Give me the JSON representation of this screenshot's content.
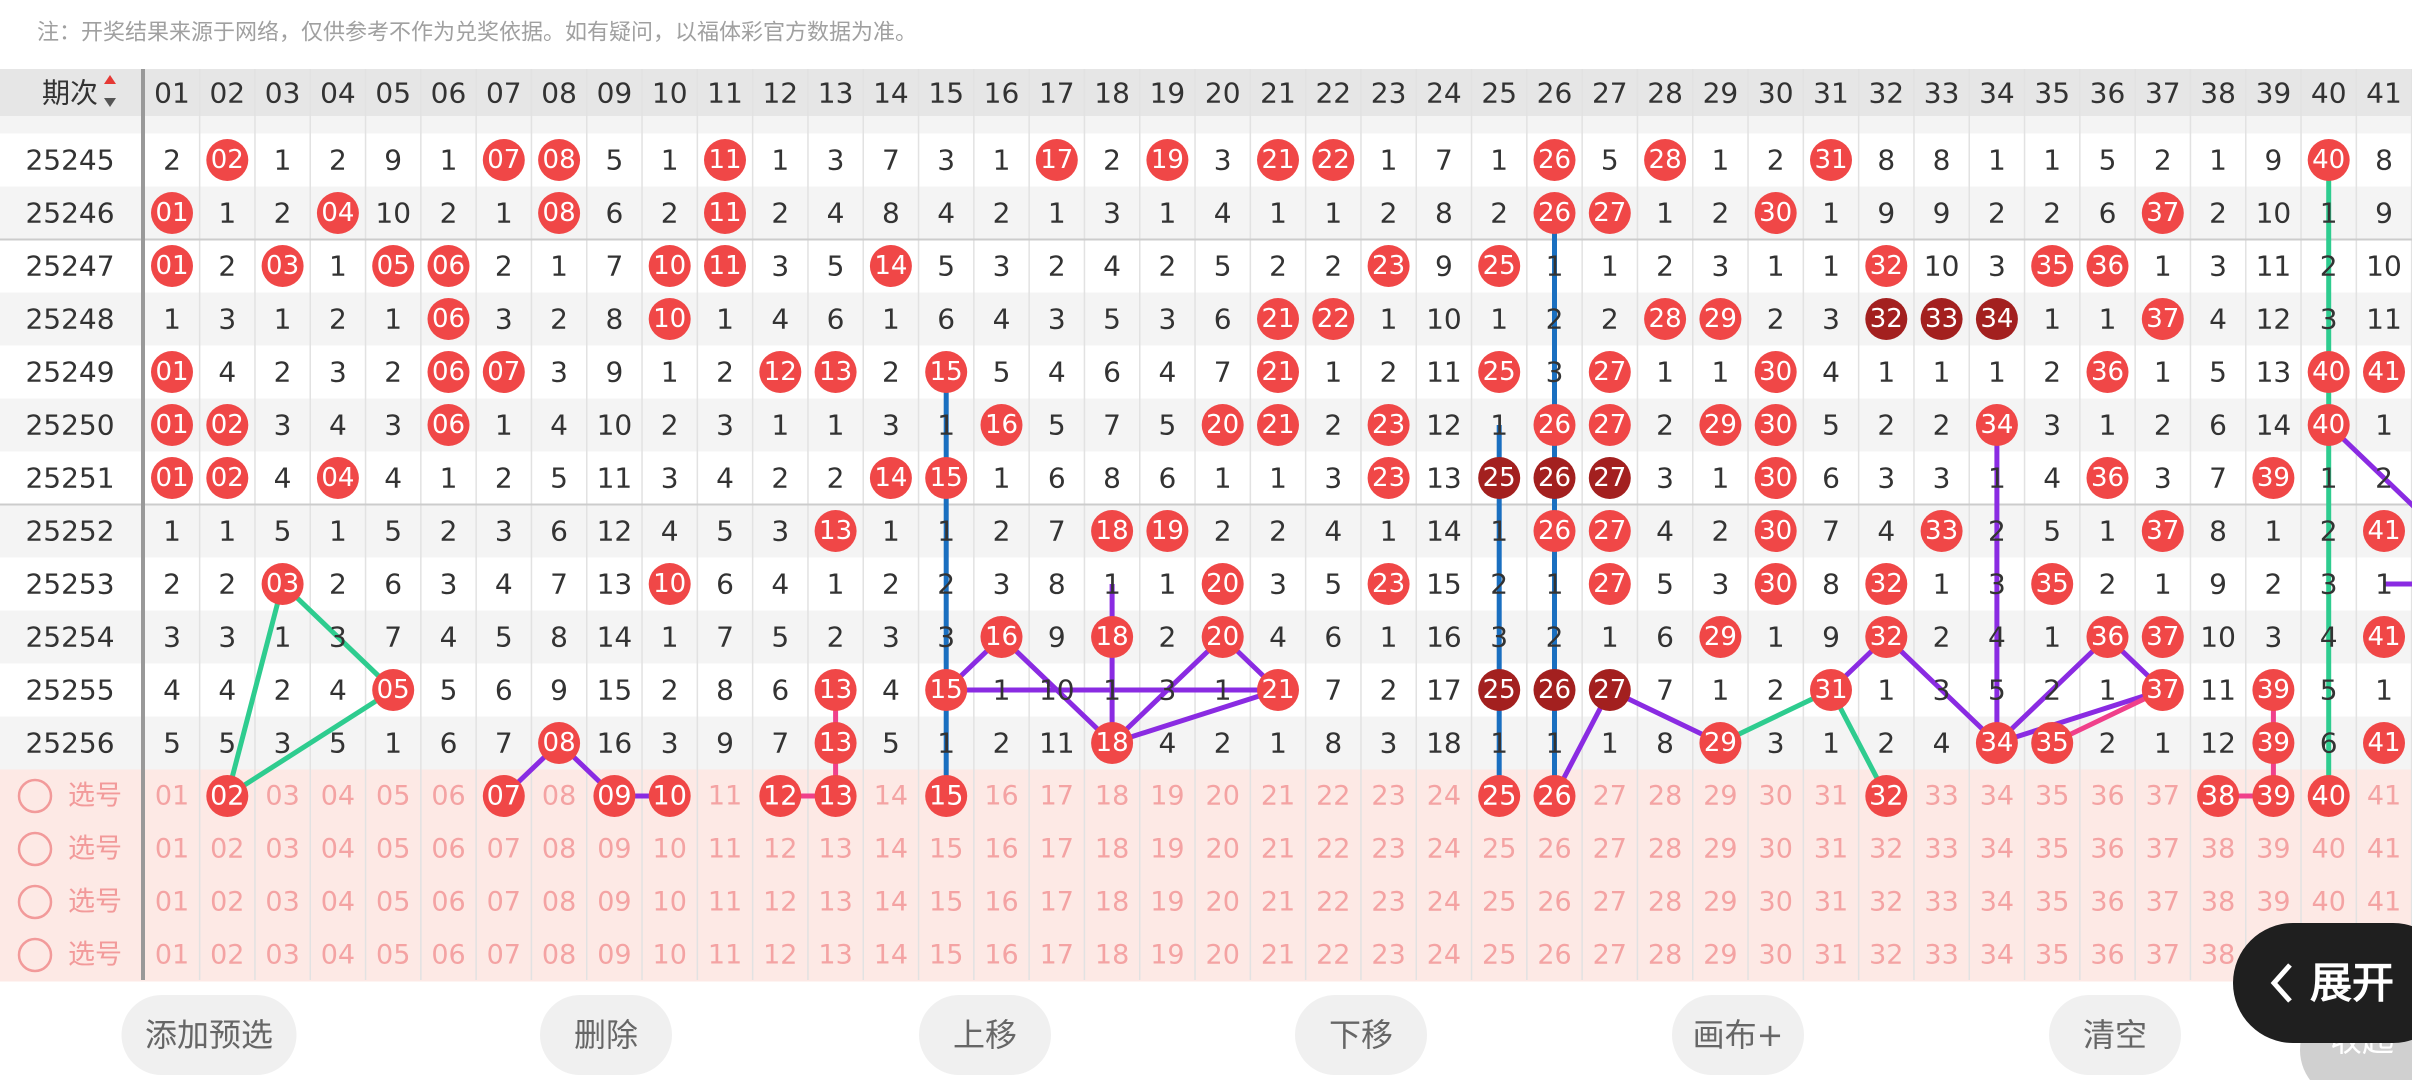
{
  "note": "注：开奖结果来源于网络，仅供参考不作为兑奖依据。如有疑问，以福体彩官方数据为准。",
  "header": {
    "issue": "期次",
    "columns": [
      "01",
      "02",
      "03",
      "04",
      "05",
      "06",
      "07",
      "08",
      "09",
      "10",
      "11",
      "12",
      "13",
      "14",
      "15",
      "16",
      "17",
      "18",
      "19",
      "20",
      "21",
      "22",
      "23",
      "24",
      "25",
      "26",
      "27",
      "28",
      "29",
      "30",
      "31",
      "32",
      "33",
      "34",
      "35",
      "36",
      "37",
      "38",
      "39",
      "40",
      "41"
    ]
  },
  "rows": [
    {
      "issue": "25245",
      "cells": [
        "2",
        "02",
        "1",
        "2",
        "9",
        "1",
        "07",
        "08",
        "5",
        "1",
        "11",
        "1",
        "3",
        "7",
        "3",
        "1",
        "17",
        "2",
        "19",
        "3",
        "21",
        "22",
        "1",
        "7",
        "1",
        "26",
        "5",
        "28",
        "1",
        "2",
        "31",
        "8",
        "8",
        "1",
        "1",
        "5",
        "2",
        "1",
        "9",
        "40",
        "8"
      ]
    },
    {
      "issue": "25246",
      "cells": [
        "01",
        "1",
        "2",
        "04",
        "10",
        "2",
        "1",
        "08",
        "6",
        "2",
        "11",
        "2",
        "4",
        "8",
        "4",
        "2",
        "1",
        "3",
        "1",
        "4",
        "1",
        "1",
        "2",
        "8",
        "2",
        "26",
        "27",
        "1",
        "2",
        "30",
        "1",
        "9",
        "9",
        "2",
        "2",
        "6",
        "37",
        "2",
        "10",
        "1",
        "9"
      ]
    },
    {
      "issue": "25247",
      "cells": [
        "01",
        "2",
        "03",
        "1",
        "05",
        "06",
        "2",
        "1",
        "7",
        "10",
        "11",
        "3",
        "5",
        "14",
        "5",
        "3",
        "2",
        "4",
        "2",
        "5",
        "2",
        "2",
        "23",
        "9",
        "25",
        "1",
        "1",
        "2",
        "3",
        "1",
        "1",
        "32",
        "10",
        "3",
        "35",
        "36",
        "1",
        "3",
        "11",
        "2",
        "10"
      ]
    },
    {
      "issue": "25248",
      "cells": [
        "1",
        "3",
        "1",
        "2",
        "1",
        "06",
        "3",
        "2",
        "8",
        "10",
        "1",
        "4",
        "6",
        "1",
        "6",
        "4",
        "3",
        "5",
        "3",
        "6",
        "21",
        "22",
        "1",
        "10",
        "1",
        "2",
        "2",
        "28",
        "29",
        "2",
        "3",
        "32",
        "33",
        "34",
        "1",
        "1",
        "37",
        "4",
        "12",
        "3",
        "11"
      ],
      "dark": [
        31,
        32,
        33
      ]
    },
    {
      "issue": "25249",
      "cells": [
        "01",
        "4",
        "2",
        "3",
        "2",
        "06",
        "07",
        "3",
        "9",
        "1",
        "2",
        "12",
        "13",
        "2",
        "15",
        "5",
        "4",
        "6",
        "4",
        "7",
        "21",
        "1",
        "2",
        "11",
        "25",
        "3",
        "27",
        "1",
        "1",
        "30",
        "4",
        "1",
        "1",
        "1",
        "2",
        "36",
        "1",
        "5",
        "13",
        "40",
        "41"
      ]
    },
    {
      "issue": "25250",
      "cells": [
        "01",
        "02",
        "3",
        "4",
        "3",
        "06",
        "1",
        "4",
        "10",
        "2",
        "3",
        "1",
        "1",
        "3",
        "1",
        "16",
        "5",
        "7",
        "5",
        "20",
        "21",
        "2",
        "23",
        "12",
        "1",
        "26",
        "27",
        "2",
        "29",
        "30",
        "5",
        "2",
        "2",
        "34",
        "3",
        "1",
        "2",
        "6",
        "14",
        "40",
        "1"
      ]
    },
    {
      "issue": "25251",
      "cells": [
        "01",
        "02",
        "4",
        "04",
        "4",
        "1",
        "2",
        "5",
        "11",
        "3",
        "4",
        "2",
        "2",
        "14",
        "15",
        "1",
        "6",
        "8",
        "6",
        "1",
        "1",
        "3",
        "23",
        "13",
        "25",
        "26",
        "27",
        "3",
        "1",
        "30",
        "6",
        "3",
        "3",
        "1",
        "4",
        "36",
        "3",
        "7",
        "39",
        "1",
        "2"
      ],
      "dark": [
        24,
        25,
        26
      ]
    },
    {
      "issue": "25252",
      "cells": [
        "1",
        "1",
        "5",
        "1",
        "5",
        "2",
        "3",
        "6",
        "12",
        "4",
        "5",
        "3",
        "13",
        "1",
        "1",
        "2",
        "7",
        "18",
        "19",
        "2",
        "2",
        "4",
        "1",
        "14",
        "1",
        "26",
        "27",
        "4",
        "2",
        "30",
        "7",
        "4",
        "33",
        "2",
        "5",
        "1",
        "37",
        "8",
        "1",
        "2",
        "41"
      ]
    },
    {
      "issue": "25253",
      "cells": [
        "2",
        "2",
        "03",
        "2",
        "6",
        "3",
        "4",
        "7",
        "13",
        "10",
        "6",
        "4",
        "1",
        "2",
        "2",
        "3",
        "8",
        "1",
        "1",
        "20",
        "3",
        "5",
        "23",
        "15",
        "2",
        "1",
        "27",
        "5",
        "3",
        "30",
        "8",
        "32",
        "1",
        "3",
        "35",
        "2",
        "1",
        "9",
        "2",
        "3",
        "1"
      ]
    },
    {
      "issue": "25254",
      "cells": [
        "3",
        "3",
        "1",
        "3",
        "7",
        "4",
        "5",
        "8",
        "14",
        "1",
        "7",
        "5",
        "2",
        "3",
        "3",
        "16",
        "9",
        "18",
        "2",
        "20",
        "4",
        "6",
        "1",
        "16",
        "3",
        "2",
        "1",
        "6",
        "29",
        "1",
        "9",
        "32",
        "2",
        "4",
        "1",
        "36",
        "37",
        "10",
        "3",
        "4",
        "41"
      ]
    },
    {
      "issue": "25255",
      "cells": [
        "4",
        "4",
        "2",
        "4",
        "05",
        "5",
        "6",
        "9",
        "15",
        "2",
        "8",
        "6",
        "13",
        "4",
        "15",
        "1",
        "10",
        "1",
        "3",
        "1",
        "21",
        "7",
        "2",
        "17",
        "25",
        "26",
        "27",
        "7",
        "1",
        "2",
        "31",
        "1",
        "3",
        "5",
        "2",
        "1",
        "37",
        "11",
        "39",
        "5",
        "1"
      ],
      "dark": [
        24,
        25,
        26
      ]
    },
    {
      "issue": "25256",
      "cells": [
        "5",
        "5",
        "3",
        "5",
        "1",
        "6",
        "7",
        "08",
        "16",
        "3",
        "9",
        "7",
        "13",
        "5",
        "1",
        "2",
        "11",
        "18",
        "4",
        "2",
        "1",
        "8",
        "3",
        "18",
        "1",
        "1",
        "1",
        "8",
        "29",
        "3",
        "1",
        "2",
        "4",
        "34",
        "35",
        "2",
        "1",
        "12",
        "39",
        "6",
        "41"
      ]
    }
  ],
  "pick_rows": [
    {
      "label": "选号",
      "selected": [
        1,
        6,
        8,
        9,
        11,
        12,
        14,
        24,
        25,
        31,
        37,
        38,
        39
      ]
    },
    {
      "label": "选号"
    },
    {
      "label": "选号"
    },
    {
      "label": "选号"
    }
  ],
  "buttons": [
    "添加预选",
    "删除",
    "上移",
    "下移",
    "画布+",
    "清空"
  ],
  "expand": "展开",
  "collapse": "收起"
}
